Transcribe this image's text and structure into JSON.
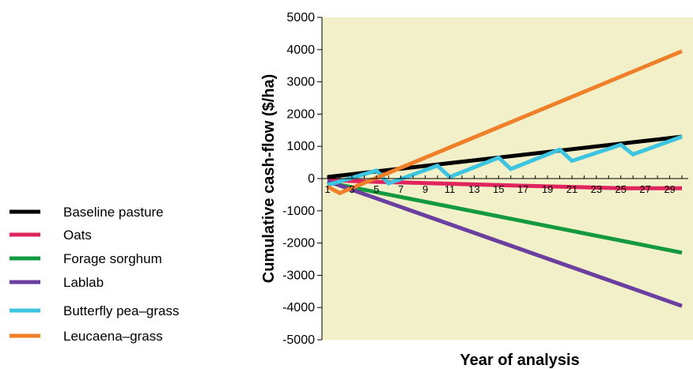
{
  "chart_data": {
    "type": "line",
    "title": "",
    "xlabel": "Year of analysis",
    "ylabel": "Cumulative cash-flow ($/ha)",
    "ylim": [
      -5000,
      5000
    ],
    "xlim": [
      1,
      30
    ],
    "y_ticks": [
      5000,
      4000,
      3000,
      2000,
      1000,
      0,
      -1000,
      -2000,
      -3000,
      -4000,
      -5000
    ],
    "y_tick_labels": [
      "5000",
      "4000",
      "3000",
      "2000",
      "1000",
      "0",
      "-1000",
      "-2000",
      "-3000",
      "-4000",
      "-5000"
    ],
    "x_tick_labels": [
      "1",
      "3",
      "5",
      "7",
      "9",
      "11",
      "13",
      "15",
      "17",
      "19",
      "21",
      "23",
      "25",
      "27",
      "29"
    ],
    "x_ticks": [
      1,
      3,
      5,
      7,
      9,
      11,
      13,
      15,
      17,
      19,
      21,
      23,
      25,
      27,
      29
    ],
    "background_color": "#f2f0c8",
    "grid": false,
    "legend_position": "left",
    "series": [
      {
        "name": "Baseline pasture",
        "color": "#000000",
        "x": [
          1,
          30
        ],
        "values": [
          50,
          1300
        ]
      },
      {
        "name": "Oats",
        "color": "#e0245e",
        "x": [
          1,
          5,
          10,
          15,
          20,
          25,
          30
        ],
        "values": [
          -50,
          -100,
          -150,
          -200,
          -250,
          -300,
          -300
        ]
      },
      {
        "name": "Forage sorghum",
        "color": "#139a3f",
        "x": [
          1,
          30
        ],
        "values": [
          -120,
          -2300
        ]
      },
      {
        "name": "Lablab",
        "color": "#6a3fa0",
        "x": [
          1,
          30
        ],
        "values": [
          -80,
          -3950
        ]
      },
      {
        "name": "Butterfly pea–grass",
        "color": "#3cc4e0",
        "x": [
          1,
          5,
          6,
          10,
          11,
          15,
          16,
          20,
          21,
          25,
          26,
          30
        ],
        "values": [
          -200,
          250,
          -150,
          400,
          50,
          650,
          300,
          900,
          550,
          1050,
          750,
          1300
        ]
      },
      {
        "name": "Leucaena–grass",
        "color": "#f07f2a",
        "x": [
          1,
          2,
          30
        ],
        "values": [
          -250,
          -450,
          3950
        ]
      }
    ]
  }
}
